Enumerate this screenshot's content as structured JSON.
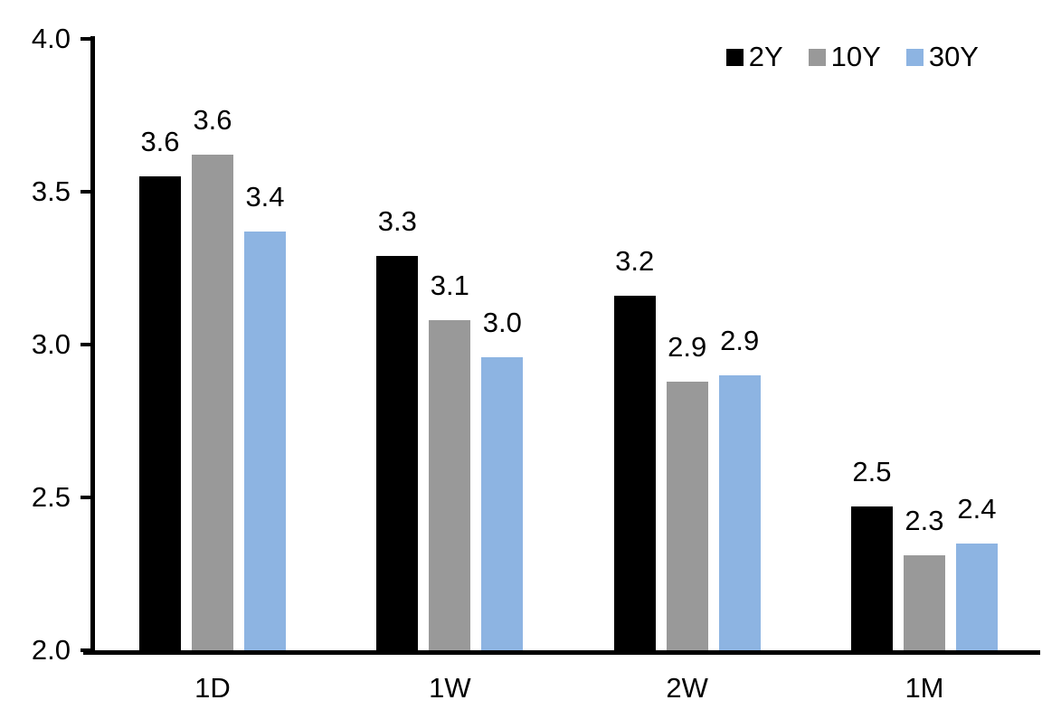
{
  "chart_data": {
    "type": "bar",
    "title": "",
    "xlabel": "",
    "ylabel": "",
    "categories": [
      "1D",
      "1W",
      "2W",
      "1M"
    ],
    "series": [
      {
        "name": "2Y",
        "color": "#000000",
        "values": [
          3.55,
          3.29,
          3.16,
          2.47
        ],
        "labels": [
          "3.6",
          "3.3",
          "3.2",
          "2.5"
        ]
      },
      {
        "name": "10Y",
        "color": "#999999",
        "values": [
          3.62,
          3.08,
          2.88,
          2.31
        ],
        "labels": [
          "3.6",
          "3.1",
          "2.9",
          "2.3"
        ]
      },
      {
        "name": "30Y",
        "color": "#8DB4E2",
        "values": [
          3.37,
          2.96,
          2.9,
          2.35
        ],
        "labels": [
          "3.4",
          "3.0",
          "2.9",
          "2.4"
        ]
      }
    ],
    "ylim": [
      2.0,
      4.0
    ],
    "yticks": [
      4.0,
      3.5,
      3.0,
      2.5,
      2.0
    ],
    "ytick_labels": [
      "4.0",
      "3.5",
      "3.0",
      "2.5",
      "2.0"
    ],
    "grid": false,
    "legend_position": "top-right",
    "legend_entries": [
      "2Y",
      "10Y",
      "30Y"
    ],
    "data_label_decimals": 1,
    "axis_color": "#000000",
    "text_color": "#000000",
    "background_color": "#FFFFFF"
  }
}
